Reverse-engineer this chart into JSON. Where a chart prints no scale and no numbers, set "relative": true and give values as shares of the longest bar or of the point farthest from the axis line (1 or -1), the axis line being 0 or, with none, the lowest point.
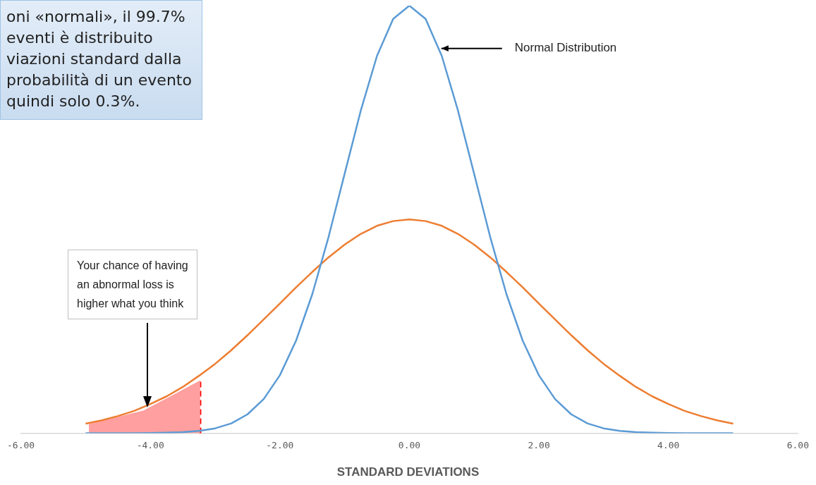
{
  "chart_data": {
    "type": "line",
    "relative": true,
    "xlabel": "STANDARD DEVIATIONS",
    "x": [
      -5,
      -4.75,
      -4.5,
      -4.25,
      -4,
      -3.75,
      -3.5,
      -3.25,
      -3,
      -2.75,
      -2.5,
      -2.25,
      -2,
      -1.75,
      -1.5,
      -1.25,
      -1,
      -0.75,
      -0.5,
      -0.25,
      0,
      0.25,
      0.5,
      0.75,
      1,
      1.25,
      1.5,
      1.75,
      2,
      2.25,
      2.5,
      2.75,
      3,
      3.25,
      3.5,
      3.75,
      4,
      4.25,
      4.5,
      4.75,
      5
    ],
    "xlim": [
      -6,
      6
    ],
    "xticks": [
      {
        "value": -6,
        "label": "-6.00"
      },
      {
        "value": -4,
        "label": "-4.00"
      },
      {
        "value": -2,
        "label": "-2.00"
      },
      {
        "value": 0,
        "label": "0.00"
      },
      {
        "value": 2,
        "label": "2.00"
      },
      {
        "value": 4,
        "label": "4.00"
      },
      {
        "value": 6,
        "label": "6.00"
      }
    ],
    "grid": false,
    "legend": false,
    "marker": "none",
    "series": [
      {
        "type": "area",
        "color": "#ff9f9f",
        "x": [
          -4.95,
          -4.1,
          -3.23
        ],
        "values": [
          0.02,
          0.052,
          0.122
        ]
      },
      {
        "color": "#5b9bd5",
        "values": [
          0,
          0,
          0,
          0,
          0.0003,
          0.0009,
          0.0022,
          0.0051,
          0.0111,
          0.0228,
          0.0439,
          0.0796,
          0.1353,
          0.2163,
          0.3247,
          0.4578,
          0.6065,
          0.7548,
          0.8825,
          0.9692,
          1,
          0.9692,
          0.8825,
          0.7548,
          0.6065,
          0.4578,
          0.3247,
          0.2163,
          0.1353,
          0.0796,
          0.0439,
          0.0228,
          0.0111,
          0.0051,
          0.0022,
          0.0009,
          0.0003,
          0,
          0,
          0,
          0
        ]
      },
      {
        "color": "#ed7d31",
        "values": [
          0.022,
          0.03,
          0.04,
          0.052,
          0.068,
          0.086,
          0.108,
          0.134,
          0.162,
          0.194,
          0.229,
          0.266,
          0.303,
          0.341,
          0.377,
          0.411,
          0.441,
          0.466,
          0.485,
          0.496,
          0.5,
          0.496,
          0.485,
          0.466,
          0.441,
          0.411,
          0.377,
          0.341,
          0.303,
          0.266,
          0.229,
          0.194,
          0.162,
          0.134,
          0.108,
          0.086,
          0.068,
          0.052,
          0.04,
          0.03,
          0.022
        ]
      }
    ],
    "ref_lines": [
      {
        "axis": "x",
        "value": -3.23,
        "color": "#ff0000",
        "line_style": "dashed"
      }
    ],
    "annotations": [
      "oni «normali», il 99.7%\neventi è distribuito\nviazioni standard dalla\nprobabilità di un evento\nquindi solo 0.3%.",
      {
        "text": "Normal Distribution",
        "x": 0.45,
        "y": 0.9
      },
      "Your chance of having\nan abnormal loss is\nhigher what you think"
    ]
  }
}
